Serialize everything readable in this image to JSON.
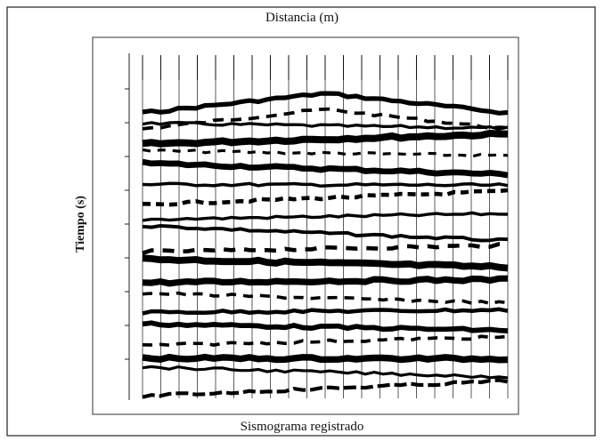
{
  "figure": {
    "title": "Distancia (m)",
    "y_label": "Tiempo (s)",
    "caption": "Sismograma registrado"
  }
}
